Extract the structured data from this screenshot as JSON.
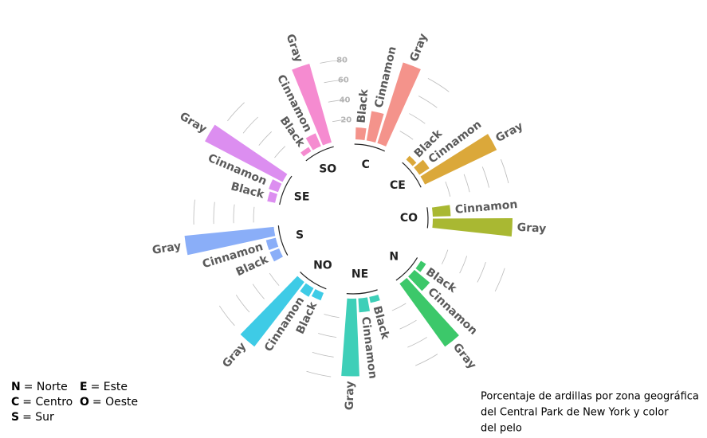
{
  "chart_data": {
    "type": "circular_bar",
    "ylim": [
      0,
      100
    ],
    "yticks": [
      20,
      40,
      60,
      80
    ],
    "groups": [
      {
        "name": "C",
        "color": "#f4938b",
        "categories": [
          "Black",
          "Cinnamon",
          "Gray"
        ],
        "values": [
          12,
          30,
          85
        ]
      },
      {
        "name": "CE",
        "color": "#dba83a",
        "categories": [
          "Black",
          "Cinnamon",
          "Gray"
        ],
        "values": [
          5,
          12,
          80
        ]
      },
      {
        "name": "CO",
        "color": "#a9b832",
        "categories": [
          "Cinnamon",
          "Gray"
        ],
        "values": [
          18,
          80
        ]
      },
      {
        "name": "N",
        "color": "#3cc86a",
        "categories": [
          "Black",
          "Cinnamon",
          "Gray"
        ],
        "values": [
          6,
          20,
          78
        ]
      },
      {
        "name": "NE",
        "color": "#3ecfb8",
        "categories": [
          "Black",
          "Cinnamon",
          "Gray"
        ],
        "values": [
          6,
          14,
          78
        ]
      },
      {
        "name": "NO",
        "color": "#3ecbe6",
        "categories": [
          "Black",
          "Cinnamon",
          "Gray"
        ],
        "values": [
          8,
          10,
          82
        ]
      },
      {
        "name": "S",
        "color": "#8aaef8",
        "categories": [
          "Black",
          "Cinnamon",
          "Gray"
        ],
        "values": [
          10,
          10,
          90
        ]
      },
      {
        "name": "SE",
        "color": "#dc8ef0",
        "categories": [
          "Black",
          "Cinnamon",
          "Gray"
        ],
        "values": [
          8,
          10,
          88
        ]
      },
      {
        "name": "SO",
        "color": "#f58bd0",
        "categories": [
          "Black",
          "Cinnamon",
          "Gray"
        ],
        "values": [
          5,
          14,
          82
        ]
      }
    ]
  },
  "legend_notes": [
    {
      "abbr": "N",
      "text": "= Norte"
    },
    {
      "abbr": "C",
      "text": "= Centro"
    },
    {
      "abbr": "S",
      "text": "= Sur"
    },
    {
      "abbr": "E",
      "text": "= Este"
    },
    {
      "abbr": "O",
      "text": "= Oeste"
    }
  ],
  "caption": [
    "Porcentaje de ardillas por zona geográfica",
    "del Central Park de New York y color",
    "del pelo"
  ]
}
